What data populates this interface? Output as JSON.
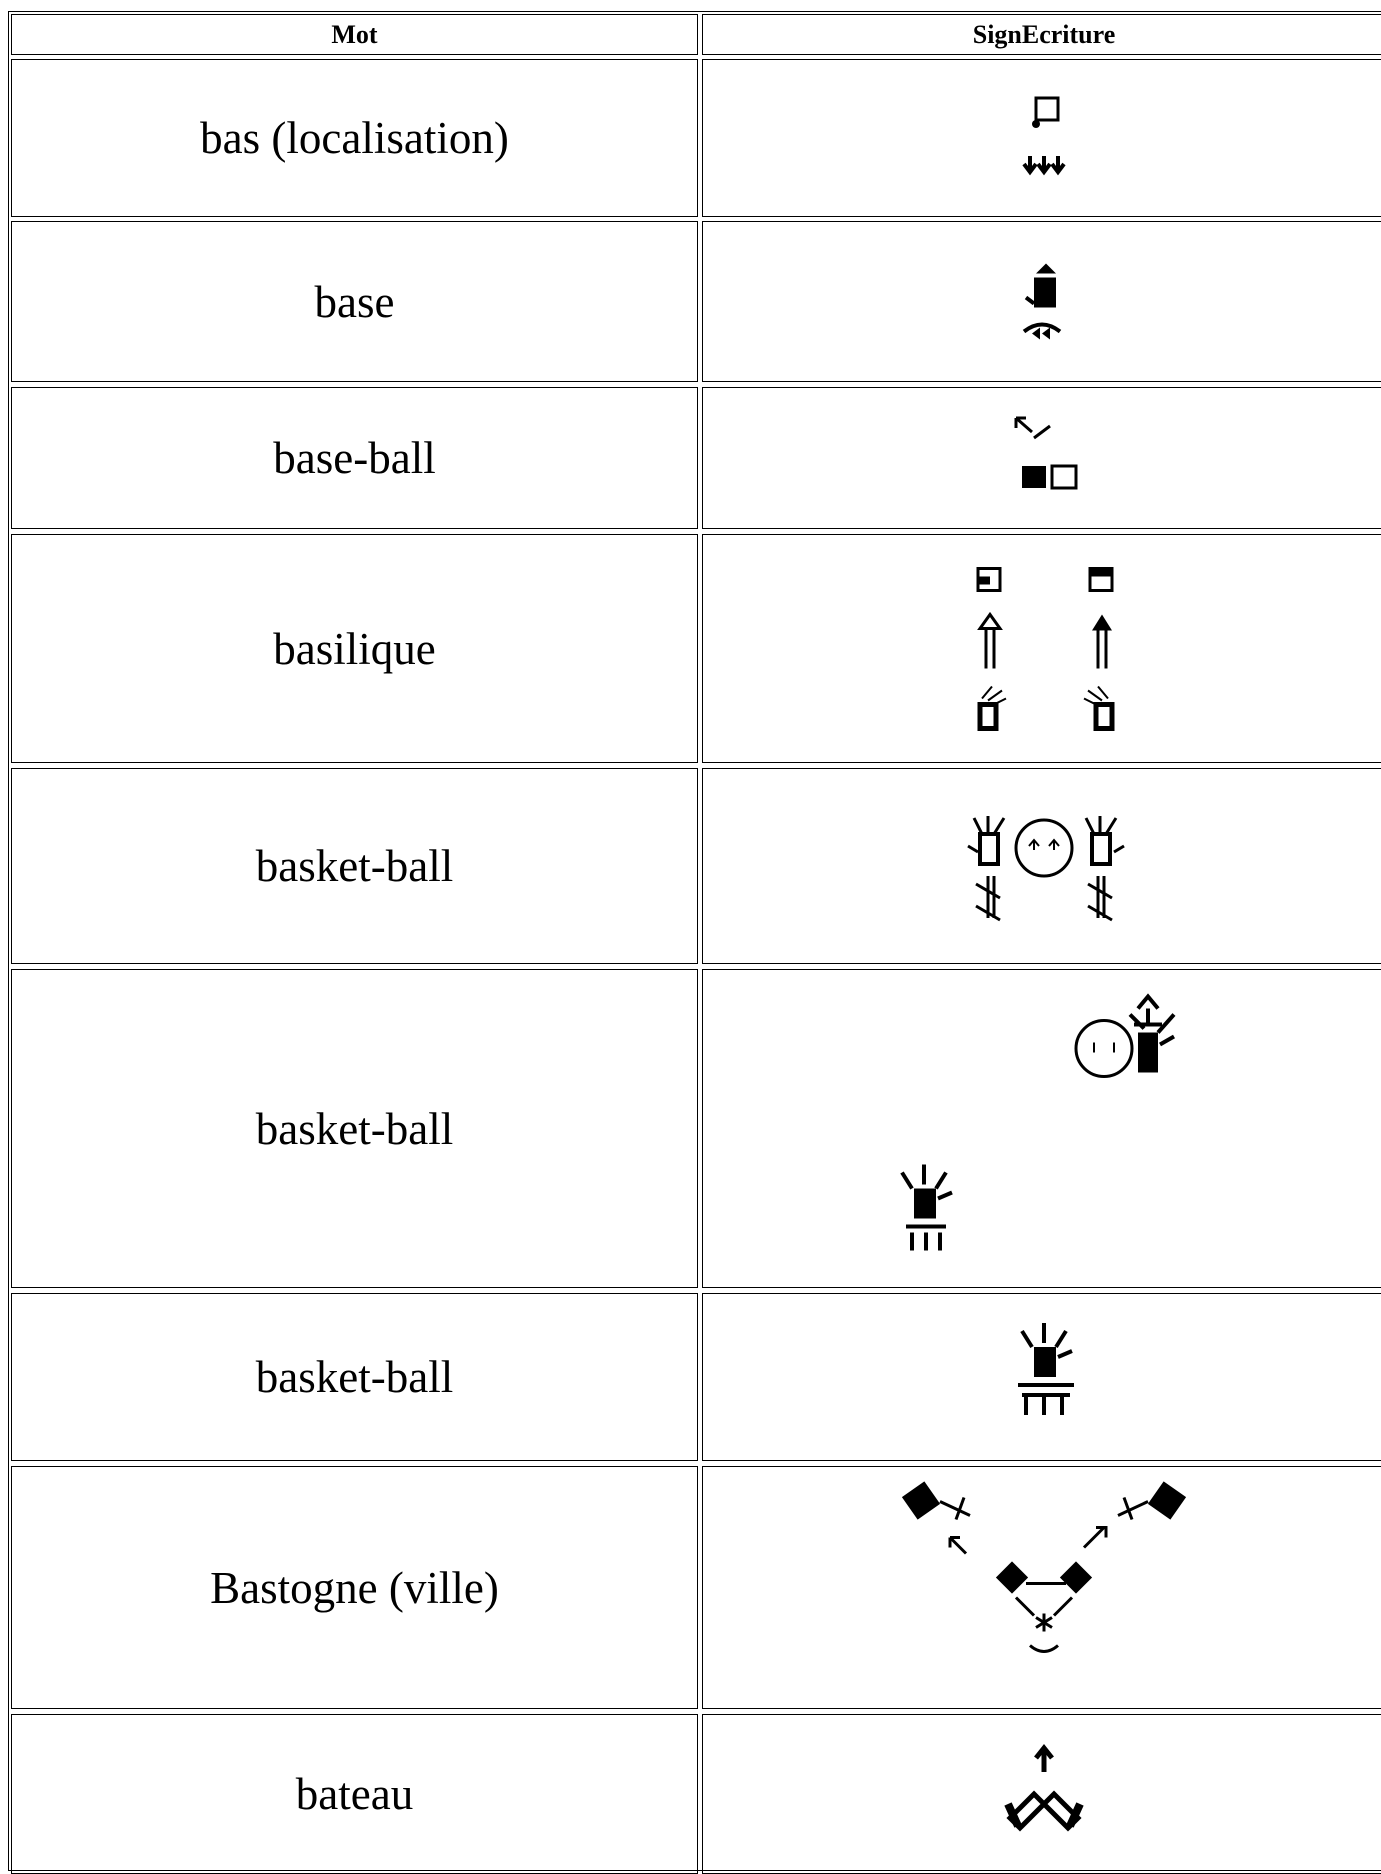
{
  "table": {
    "header": [
      "Mot",
      "SignEcriture"
    ],
    "rows": [
      "bas (localisation)",
      "base",
      "base-ball",
      "basilique",
      "basket-ball",
      "basket-ball",
      "basket-ball",
      "Bastogne (ville)",
      "bateau"
    ]
  }
}
